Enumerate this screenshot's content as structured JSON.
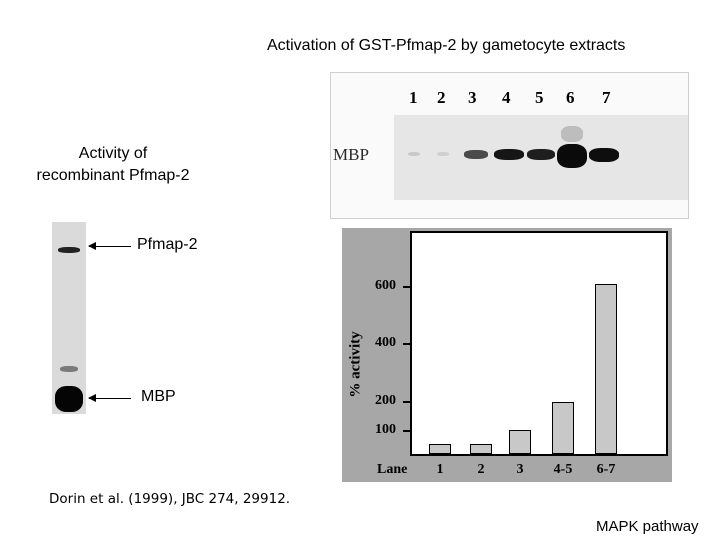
{
  "titles": {
    "top": "Activation of GST-Pfmap-2 by gametocyte extracts",
    "left_line1": "Activity of",
    "left_line2": "recombinant Pfmap-2"
  },
  "left_gel": {
    "band_upper_label": "Pfmap-2",
    "band_lower_label": "MBP"
  },
  "top_gel": {
    "row_label": "MBP",
    "lanes": [
      "1",
      "2",
      "3",
      "4",
      "5",
      "6",
      "7"
    ]
  },
  "chart_data": {
    "type": "bar",
    "ylabel": "% activity",
    "xlabel": "Lane",
    "categories": [
      "1",
      "2",
      "3",
      "4-5",
      "6-7"
    ],
    "values": [
      55,
      55,
      105,
      200,
      610
    ],
    "yticks": [
      "600",
      "400",
      "200",
      "100"
    ],
    "ytick_values": [
      600,
      400,
      200,
      100
    ],
    "ylim": [
      0,
      620
    ],
    "colors": {
      "bar": "#c8c8c8",
      "panel_bg": "#a7a7a7"
    }
  },
  "citation": "Dorin et al. (1999), JBC 274, 29912.",
  "footer": "MAPK pathway"
}
